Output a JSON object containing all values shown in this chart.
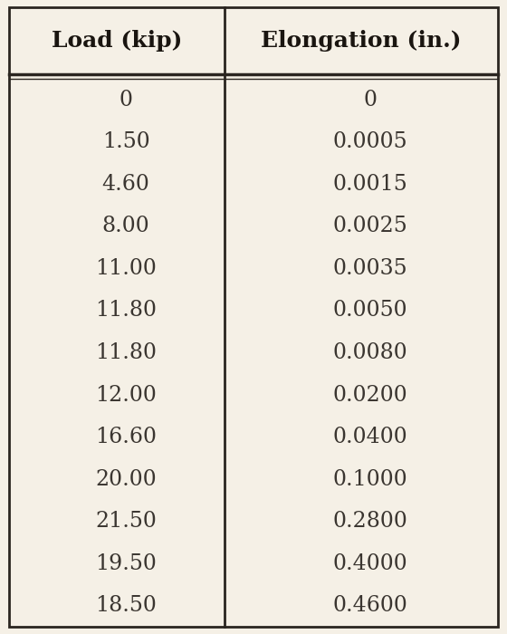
{
  "col1_header": "Load (kip)",
  "col2_header": "Elongation (in.)",
  "load_values": [
    "0",
    "1.50",
    "4.60",
    "8.00",
    "11.00",
    "11.80",
    "11.80",
    "12.00",
    "16.60",
    "20.00",
    "21.50",
    "19.50",
    "18.50"
  ],
  "elongation_values": [
    "0",
    "0.0005",
    "0.0015",
    "0.0025",
    "0.0035",
    "0.0050",
    "0.0080",
    "0.0200",
    "0.0400",
    "0.1000",
    "0.2800",
    "0.4000",
    "0.4600"
  ],
  "background_color": "#f5f0e6",
  "text_color": "#3a3530",
  "header_color": "#1a1510",
  "border_color": "#2a2520",
  "fig_width": 5.6,
  "fig_height": 7.0,
  "dpi": 100,
  "header_fontsize": 18,
  "data_fontsize": 17
}
